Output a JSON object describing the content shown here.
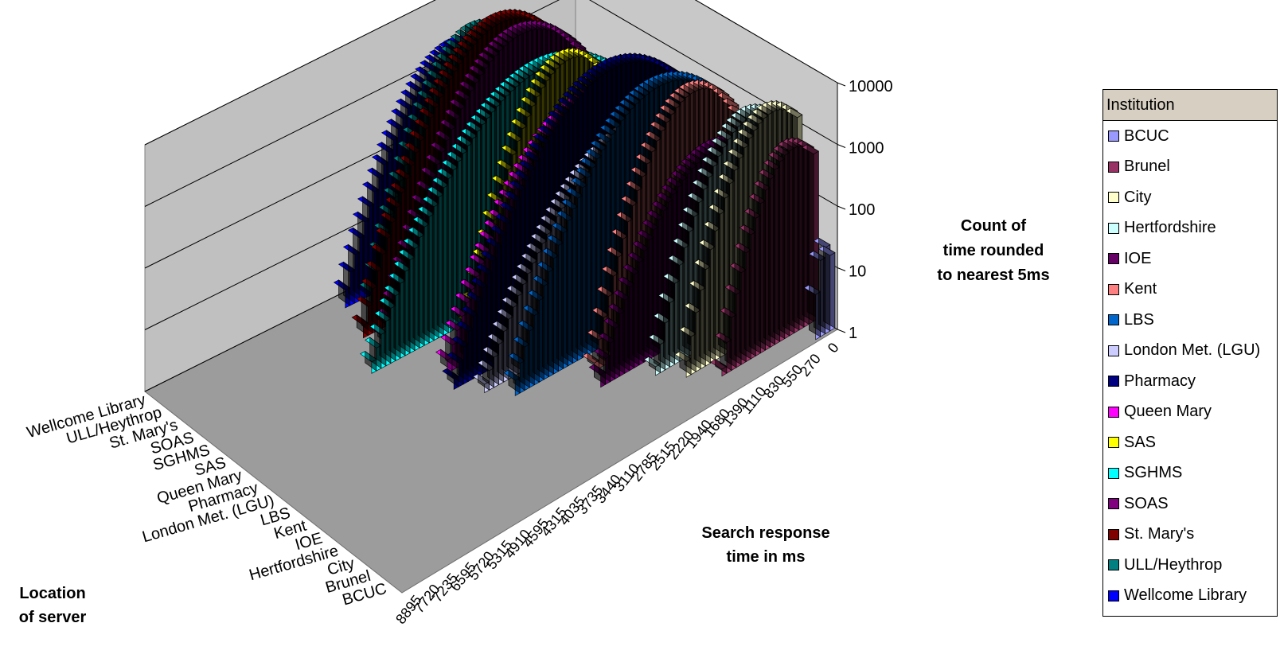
{
  "chart_data": {
    "type": "3d-column",
    "z_axis_title": "Location\nof server",
    "x_axis_title": "Search response\ntime in ms",
    "y_axis_title": "Count of\ntime rounded\nto nearest 5ms",
    "y_scale": "log",
    "y_ticks": [
      "1",
      "10",
      "100",
      "1000",
      "10000"
    ],
    "x_ticks": [
      "0",
      "270",
      "550",
      "830",
      "1110",
      "1390",
      "1680",
      "1940",
      "2220",
      "2515",
      "2785",
      "3110",
      "3440",
      "3735",
      "4035",
      "4315",
      "4595",
      "4910",
      "5315",
      "5720",
      "6595",
      "7235",
      "7720",
      "8895"
    ],
    "z_ticks": [
      "BCUC",
      "Brunel",
      "City",
      "Hertfordshire",
      "IOE",
      "Kent",
      "LBS",
      "London Met. (LGU)",
      "Pharmacy",
      "Queen Mary",
      "SAS",
      "SGHMS",
      "SOAS",
      "St. Mary's",
      "ULL/Heythrop",
      "Wellcome Library"
    ],
    "legend": {
      "title": "Institution",
      "placement": "right",
      "entries": [
        {
          "name": "BCUC",
          "color": "#9999ff"
        },
        {
          "name": "Brunel",
          "color": "#993366"
        },
        {
          "name": "City",
          "color": "#ffffcc"
        },
        {
          "name": "Hertfordshire",
          "color": "#ccffff"
        },
        {
          "name": "IOE",
          "color": "#660066"
        },
        {
          "name": "Kent",
          "color": "#ff8080"
        },
        {
          "name": "LBS",
          "color": "#0066cc"
        },
        {
          "name": "London Met. (LGU)",
          "color": "#ccccff"
        },
        {
          "name": "Pharmacy",
          "color": "#000080"
        },
        {
          "name": "Queen Mary",
          "color": "#ff00ff"
        },
        {
          "name": "SAS",
          "color": "#ffff00"
        },
        {
          "name": "SGHMS",
          "color": "#00ffff"
        },
        {
          "name": "SOAS",
          "color": "#800080"
        },
        {
          "name": "St. Mary's",
          "color": "#800000"
        },
        {
          "name": "ULL/Heythrop",
          "color": "#008080"
        },
        {
          "name": "Wellcome Library",
          "color": "#0000ff"
        }
      ]
    },
    "series": [
      {
        "name": "BCUC",
        "color": "#9999ff",
        "peak_ms": 150,
        "peak_count": 25,
        "spread_ms": 200
      },
      {
        "name": "Brunel",
        "color": "#993366",
        "peak_ms": 500,
        "peak_count": 1000,
        "spread_ms": 700
      },
      {
        "name": "City",
        "color": "#ffffcc",
        "peak_ms": 600,
        "peak_count": 3000,
        "spread_ms": 800
      },
      {
        "name": "Hertfordshire",
        "color": "#ccffff",
        "peak_ms": 700,
        "peak_count": 2000,
        "spread_ms": 900
      },
      {
        "name": "IOE",
        "color": "#660066",
        "peak_ms": 1100,
        "peak_count": 600,
        "spread_ms": 1200
      },
      {
        "name": "Kent",
        "color": "#ff8080",
        "peak_ms": 1200,
        "peak_count": 4000,
        "spread_ms": 900
      },
      {
        "name": "LBS",
        "color": "#0066cc",
        "peak_ms": 1600,
        "peak_count": 5000,
        "spread_ms": 1300
      },
      {
        "name": "London Met. (LGU)",
        "color": "#ccccff",
        "peak_ms": 1800,
        "peak_count": 800,
        "spread_ms": 1500
      },
      {
        "name": "Pharmacy",
        "color": "#000080",
        "peak_ms": 1900,
        "peak_count": 6000,
        "spread_ms": 1400
      },
      {
        "name": "Queen Mary",
        "color": "#ff00ff",
        "peak_ms": 2000,
        "peak_count": 1500,
        "spread_ms": 1400
      },
      {
        "name": "SAS",
        "color": "#ffff00",
        "peak_ms": 2100,
        "peak_count": 5000,
        "spread_ms": 900
      },
      {
        "name": "SGHMS",
        "color": "#00ffff",
        "peak_ms": 2300,
        "peak_count": 3000,
        "spread_ms": 1600
      },
      {
        "name": "SOAS",
        "color": "#800080",
        "peak_ms": 2400,
        "peak_count": 8000,
        "spread_ms": 1200
      },
      {
        "name": "St. Mary's",
        "color": "#800000",
        "peak_ms": 2500,
        "peak_count": 9000,
        "spread_ms": 1200
      },
      {
        "name": "ULL/Heythrop",
        "color": "#008080",
        "peak_ms": 2600,
        "peak_count": 5000,
        "spread_ms": 1000
      },
      {
        "name": "Wellcome Library",
        "color": "#0000ff",
        "peak_ms": 2700,
        "peak_count": 2000,
        "spread_ms": 1100
      }
    ]
  }
}
